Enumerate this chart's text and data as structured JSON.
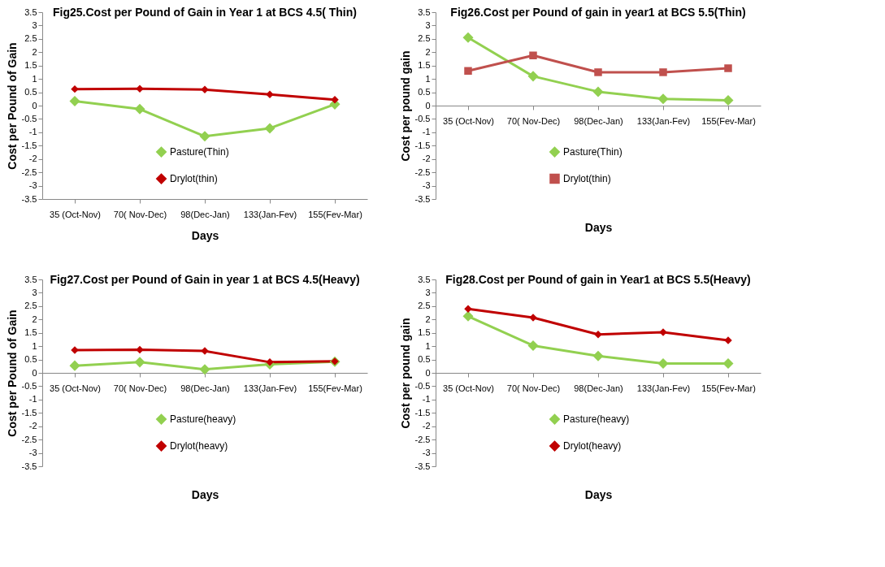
{
  "chart_data": [
    {
      "type": "line",
      "title": "Fig25.Cost per  Pound of  Gain in Year 1 at BCS 4.5( Thin)",
      "xlabel": "Days",
      "ylabel": "Cost per Pound of Gain",
      "categories": [
        "35 (Oct-Nov)",
        "70( Nov-Dec)",
        "98(Dec-Jan)",
        "133(Jan-Fev)",
        "155(Fev-Mar)"
      ],
      "ylim": [
        -3.5,
        3.5
      ],
      "yticks": [
        -3.5,
        -3,
        -2.5,
        -2,
        -1.5,
        -1,
        -0.5,
        0,
        0.5,
        1,
        1.5,
        2,
        2.5,
        3,
        3.5
      ],
      "grid": false,
      "legend": "bottom",
      "marker": "diamond",
      "series": [
        {
          "name": "Pasture(Thin)",
          "color": "#92d050",
          "values": [
            0.17,
            -0.13,
            -1.15,
            -0.85,
            0.05
          ]
        },
        {
          "name": "Drylot(thin)",
          "color": "#c00000",
          "values": [
            0.62,
            0.63,
            0.6,
            0.42,
            0.22
          ]
        }
      ]
    },
    {
      "type": "line",
      "title": "Fig26.Cost per Pound of gain in year1 at BCS 5.5(Thin)",
      "xlabel": "Days",
      "ylabel": "Cost per pound gain",
      "categories": [
        "35 (Oct-Nov)",
        "70( Nov-Dec)",
        "98(Dec-Jan)",
        "133(Jan-Fev)",
        "155(Fev-Mar)"
      ],
      "ylim": [
        -3.5,
        3.5
      ],
      "yticks": [
        -3.5,
        -3,
        -2.5,
        -2,
        -1.5,
        -1,
        -0.5,
        0,
        0.5,
        1,
        1.5,
        2,
        2.5,
        3,
        3.5
      ],
      "grid": false,
      "legend": "bottom",
      "marker": "diamond",
      "series": [
        {
          "name": "Pasture(Thin)",
          "color": "#92d050",
          "values": [
            2.55,
            1.1,
            0.52,
            0.25,
            0.2
          ]
        },
        {
          "name": "Drylot(thin)",
          "color": "#c0504d",
          "marker": "square",
          "values": [
            1.3,
            1.88,
            1.25,
            1.25,
            1.4
          ]
        }
      ]
    },
    {
      "type": "line",
      "title": "Fig27.Cost per Pound of Gain in year 1 at BCS 4.5(Heavy)",
      "xlabel": "Days",
      "ylabel": "Cost per Pound of Gain",
      "categories": [
        "35 (Oct-Nov)",
        "70( Nov-Dec)",
        "98(Dec-Jan)",
        "133(Jan-Fev)",
        "155(Fev-Mar)"
      ],
      "ylim": [
        -3.5,
        3.5
      ],
      "yticks": [
        -3.5,
        -3,
        -2.5,
        -2,
        -1.5,
        -1,
        -0.5,
        0,
        0.5,
        1,
        1.5,
        2,
        2.5,
        3,
        3.5
      ],
      "grid": false,
      "legend": "bottom",
      "marker": "diamond",
      "series": [
        {
          "name": "Pasture(heavy)",
          "color": "#92d050",
          "values": [
            0.27,
            0.4,
            0.13,
            0.32,
            0.42
          ]
        },
        {
          "name": "Drylot(heavy)",
          "color": "#c00000",
          "values": [
            0.85,
            0.87,
            0.82,
            0.4,
            0.43
          ]
        }
      ]
    },
    {
      "type": "line",
      "title": "Fig28.Cost per Pound of gain in Year1 at BCS 5.5(Heavy)",
      "xlabel": "Days",
      "ylabel": "Cost per pound gain",
      "categories": [
        "35 (Oct-Nov)",
        "70( Nov-Dec)",
        "98(Dec-Jan)",
        "133(Jan-Fev)",
        "155(Fev-Mar)"
      ],
      "ylim": [
        -3.5,
        3.5
      ],
      "yticks": [
        -3.5,
        -3,
        -2.5,
        -2,
        -1.5,
        -1,
        -0.5,
        0,
        0.5,
        1,
        1.5,
        2,
        2.5,
        3,
        3.5
      ],
      "grid": false,
      "legend": "bottom",
      "marker": "diamond",
      "series": [
        {
          "name": "Pasture(heavy)",
          "color": "#92d050",
          "values": [
            2.12,
            1.02,
            0.63,
            0.35,
            0.35
          ]
        },
        {
          "name": "Drylot(heavy)",
          "color": "#c00000",
          "values": [
            2.4,
            2.07,
            1.44,
            1.52,
            1.22
          ]
        }
      ]
    }
  ]
}
